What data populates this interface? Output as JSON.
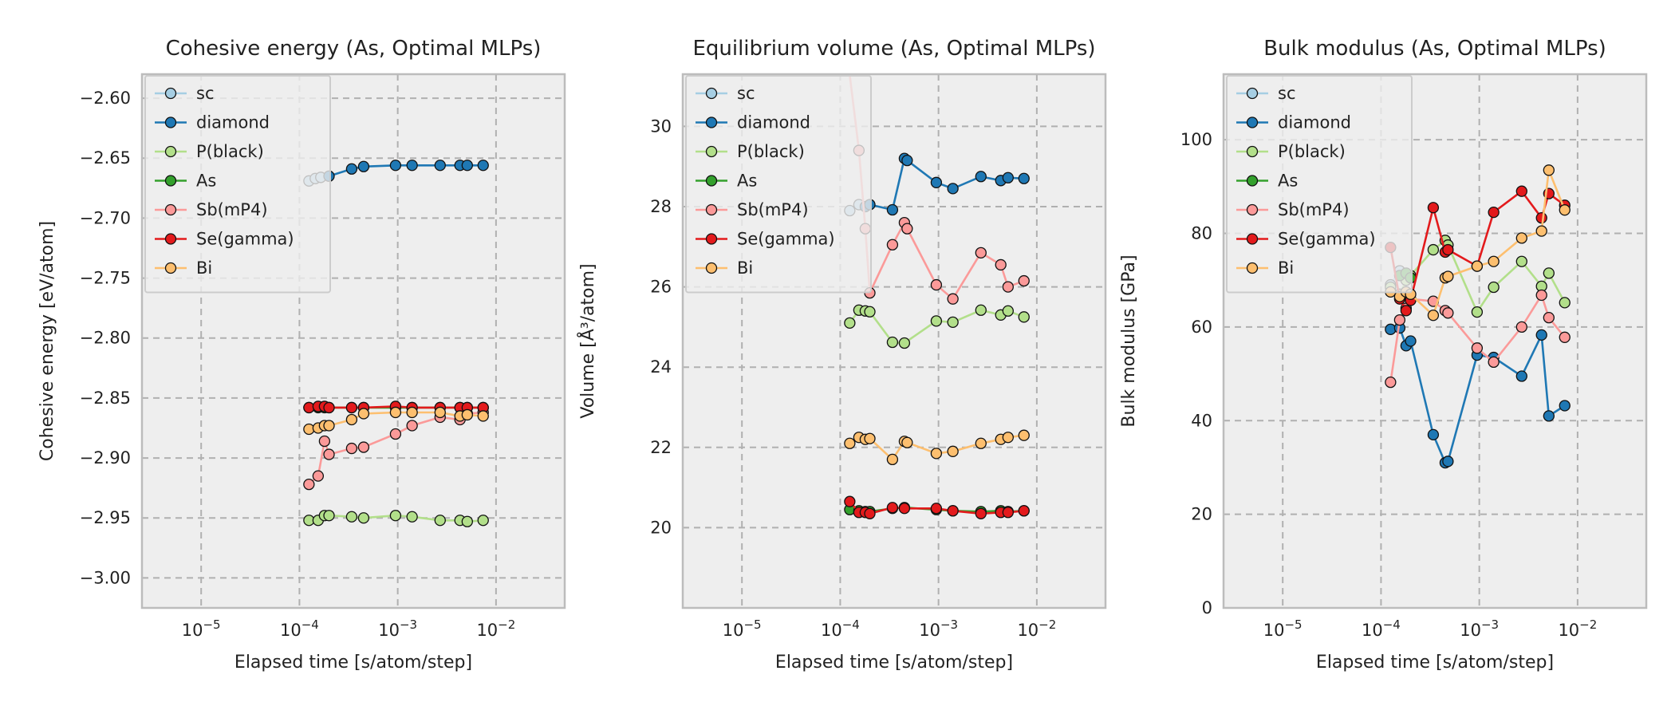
{
  "colors": {
    "sc": "#a6cee3",
    "diamond": "#1f78b4",
    "P(black)": "#b2df8a",
    "As": "#33a02c",
    "Sb(mP4)": "#fb9a99",
    "Se(gamma)": "#e31a1c",
    "Bi": "#fdbf6f",
    "panel_bg": "#eeeeee",
    "grid": "#b0b0b0",
    "frame": "#bcbcbc"
  },
  "legend_labels": [
    "sc",
    "diamond",
    "P(black)",
    "As",
    "Sb(mP4)",
    "Se(gamma)",
    "Bi"
  ],
  "chart_data": [
    {
      "type": "line",
      "title": "Cohesive energy (As, Optimal MLPs)",
      "xlabel": "Elapsed time [s/atom/step]",
      "ylabel": "Cohesive energy [eV/atom]",
      "xscale": "log",
      "xlim": [
        2.5e-06,
        0.05
      ],
      "ylim": [
        -3.025,
        -2.58
      ],
      "x_ticks": [
        1e-05,
        0.0001,
        0.001,
        0.01
      ],
      "x_tick_labels": [
        "10^-5",
        "10^-4",
        "10^-3",
        "10^-2"
      ],
      "y_ticks": [
        -3.0,
        -2.95,
        -2.9,
        -2.85,
        -2.8,
        -2.75,
        -2.7,
        -2.65,
        -2.6
      ],
      "y_tick_labels": [
        "−3.00",
        "−2.95",
        "−2.90",
        "−2.85",
        "−2.80",
        "−2.75",
        "−2.70",
        "−2.65",
        "−2.60"
      ],
      "grid": true,
      "legend_position": "upper-left",
      "series": [
        {
          "name": "sc",
          "x": [
            0.000125,
            0.000145,
            0.000165
          ],
          "y": [
            -2.669,
            -2.667,
            -2.666
          ]
        },
        {
          "name": "diamond",
          "x": [
            0.0002,
            0.00034,
            0.00045,
            0.00095,
            0.0014,
            0.0027,
            0.0043,
            0.0051,
            0.0074
          ],
          "y": [
            -2.665,
            -2.659,
            -2.657,
            -2.656,
            -2.656,
            -2.656,
            -2.656,
            -2.656,
            -2.656
          ]
        },
        {
          "name": "P(black)",
          "x": [
            0.000125,
            0.000155,
            0.00018,
            0.0002,
            0.00034,
            0.00045,
            0.00095,
            0.0014,
            0.0027,
            0.0043,
            0.0051,
            0.0074
          ],
          "y": [
            -2.952,
            -2.952,
            -2.948,
            -2.948,
            -2.949,
            -2.95,
            -2.948,
            -2.949,
            -2.952,
            -2.952,
            -2.953,
            -2.952
          ]
        },
        {
          "name": "As",
          "x": [
            0.000125,
            0.000155,
            0.00018,
            0.0002,
            0.00034,
            0.00045,
            0.00095,
            0.0014,
            0.0027,
            0.0043,
            0.0051,
            0.0074
          ],
          "y": [
            -2.858,
            -2.858,
            -2.858,
            -2.858,
            -2.858,
            -2.858,
            -2.858,
            -2.858,
            -2.858,
            -2.858,
            -2.858,
            -2.858
          ]
        },
        {
          "name": "Sb(mP4)",
          "x": [
            0.000125,
            0.000155,
            0.00018,
            0.0002,
            0.00034,
            0.00045,
            0.00095,
            0.0014,
            0.0027,
            0.0043,
            0.0051,
            0.0074
          ],
          "y": [
            -2.922,
            -2.915,
            -2.886,
            -2.897,
            -2.892,
            -2.891,
            -2.88,
            -2.873,
            -2.866,
            -2.868,
            -2.863,
            -2.862
          ]
        },
        {
          "name": "Se(gamma)",
          "x": [
            0.000125,
            0.000155,
            0.00018,
            0.0002,
            0.00034,
            0.00045,
            0.00095,
            0.0014,
            0.0027,
            0.0043,
            0.0051,
            0.0074
          ],
          "y": [
            -2.858,
            -2.857,
            -2.857,
            -2.858,
            -2.858,
            -2.858,
            -2.857,
            -2.858,
            -2.858,
            -2.858,
            -2.858,
            -2.858
          ]
        },
        {
          "name": "Bi",
          "x": [
            0.000125,
            0.000155,
            0.00018,
            0.0002,
            0.00034,
            0.00045,
            0.00095,
            0.0014,
            0.0027,
            0.0043,
            0.0051,
            0.0074
          ],
          "y": [
            -2.876,
            -2.875,
            -2.873,
            -2.873,
            -2.868,
            -2.863,
            -2.862,
            -2.862,
            -2.862,
            -2.865,
            -2.864,
            -2.865
          ]
        }
      ]
    },
    {
      "type": "line",
      "title": "Equilibrium volume (As, Optimal MLPs)",
      "xlabel": "Elapsed time [s/atom/step]",
      "ylabel": "Volume [Å³/atom]",
      "xscale": "log",
      "xlim": [
        2.5e-06,
        0.05
      ],
      "ylim": [
        18.0,
        31.3
      ],
      "x_ticks": [
        1e-05,
        0.0001,
        0.001,
        0.01
      ],
      "x_tick_labels": [
        "10^-5",
        "10^-4",
        "10^-3",
        "10^-2"
      ],
      "y_ticks": [
        20,
        22,
        24,
        26,
        28,
        30
      ],
      "y_tick_labels": [
        "20",
        "22",
        "24",
        "26",
        "28",
        "30"
      ],
      "grid": true,
      "legend_position": "upper-left",
      "series": [
        {
          "name": "sc",
          "x": [
            0.000125,
            0.000155
          ],
          "y": [
            27.9,
            28.05
          ]
        },
        {
          "name": "diamond",
          "x": [
            0.00018,
            0.0002,
            0.00034,
            0.00045,
            0.00048,
            0.00095,
            0.0014,
            0.0027,
            0.0043,
            0.0051,
            0.0074
          ],
          "y": [
            28.0,
            28.05,
            27.92,
            29.2,
            29.15,
            28.6,
            28.45,
            28.75,
            28.65,
            28.72,
            28.7
          ]
        },
        {
          "name": "P(black)",
          "x": [
            0.000125,
            0.000155,
            0.00018,
            0.0002,
            0.00034,
            0.00045,
            0.00095,
            0.0014,
            0.0027,
            0.0043,
            0.0051,
            0.0074
          ],
          "y": [
            25.1,
            25.42,
            25.4,
            25.38,
            24.62,
            24.6,
            25.15,
            25.12,
            25.42,
            25.3,
            25.4,
            25.25
          ]
        },
        {
          "name": "As",
          "x": [
            0.000125,
            0.000155,
            0.00018,
            0.0002,
            0.00034,
            0.00045,
            0.00095,
            0.0014,
            0.0027,
            0.0043,
            0.0051,
            0.0074
          ],
          "y": [
            20.45,
            20.42,
            20.4,
            20.4,
            20.48,
            20.5,
            20.45,
            20.42,
            20.4,
            20.42,
            20.4,
            20.42
          ]
        },
        {
          "name": "Sb(mP4)",
          "x": [
            0.000115,
            0.000155,
            0.00018,
            0.0002,
            0.00034,
            0.00045,
            0.00048,
            0.00095,
            0.0014,
            0.0027,
            0.0043,
            0.0051,
            0.0074
          ],
          "y": [
            32.0,
            29.4,
            27.45,
            25.85,
            27.05,
            27.6,
            27.45,
            26.05,
            25.7,
            26.85,
            26.55,
            26.0,
            26.15
          ]
        },
        {
          "name": "Se(gamma)",
          "x": [
            0.000125,
            0.000155,
            0.00018,
            0.0002,
            0.00034,
            0.00045,
            0.00095,
            0.0014,
            0.0027,
            0.0043,
            0.0051,
            0.0074
          ],
          "y": [
            20.65,
            20.38,
            20.38,
            20.35,
            20.5,
            20.48,
            20.48,
            20.42,
            20.35,
            20.38,
            20.38,
            20.42
          ]
        },
        {
          "name": "Bi",
          "x": [
            0.000125,
            0.000155,
            0.00018,
            0.0002,
            0.00034,
            0.00045,
            0.00048,
            0.00095,
            0.0014,
            0.0027,
            0.0043,
            0.0051,
            0.0074
          ],
          "y": [
            22.1,
            22.25,
            22.2,
            22.22,
            21.7,
            22.15,
            22.12,
            21.85,
            21.9,
            22.1,
            22.2,
            22.25,
            22.3
          ]
        }
      ]
    },
    {
      "type": "line",
      "title": "Bulk modulus (As, Optimal MLPs)",
      "xlabel": "Elapsed time [s/atom/step]",
      "ylabel": "Bulk modulus [GPa]",
      "xscale": "log",
      "xlim": [
        2.5e-06,
        0.05
      ],
      "ylim": [
        0,
        114
      ],
      "x_ticks": [
        1e-05,
        0.0001,
        0.001,
        0.01
      ],
      "x_tick_labels": [
        "10^-5",
        "10^-4",
        "10^-3",
        "10^-2"
      ],
      "y_ticks": [
        0,
        20,
        40,
        60,
        80,
        100
      ],
      "y_tick_labels": [
        "0",
        "20",
        "40",
        "60",
        "80",
        "100"
      ],
      "grid": true,
      "legend_position": "upper-left",
      "series": [
        {
          "name": "sc",
          "x": [
            0.000125,
            0.000155
          ],
          "y": [
            69,
            72
          ]
        },
        {
          "name": "diamond",
          "x": [
            0.000125,
            0.000155,
            0.00018,
            0.0002,
            0.00034,
            0.00045,
            0.00048,
            0.00095,
            0.0014,
            0.0027,
            0.0043,
            0.0051,
            0.0074
          ],
          "y": [
            59.5,
            59.8,
            56,
            57,
            37,
            31,
            31.3,
            54,
            53.5,
            49.5,
            58.3,
            41,
            43.2
          ]
        },
        {
          "name": "P(black)",
          "x": [
            0.000125,
            0.000155,
            0.00018,
            0.0002,
            0.00034,
            0.00045,
            0.00048,
            0.00095,
            0.0014,
            0.0027,
            0.0043,
            0.0051,
            0.0074
          ],
          "y": [
            68.5,
            67,
            70,
            71,
            76.5,
            78.5,
            77.5,
            63.2,
            68.5,
            74,
            68.7,
            71.5,
            65.2
          ]
        },
        {
          "name": "As",
          "x": [
            0.000155,
            0.00018,
            0.0002
          ],
          "y": [
            71,
            71.5,
            70.5
          ]
        },
        {
          "name": "Sb(mP4)",
          "x": [
            0.000125,
            0.000155,
            0.00018,
            0.0002,
            0.00034,
            0.00045,
            0.00048,
            0.00095,
            0.0014,
            0.0027,
            0.0043,
            0.0051,
            0.0074
          ],
          "y": [
            48.2,
            61.5,
            64,
            66,
            65.5,
            63.5,
            63,
            55.5,
            52.5,
            60,
            66.8,
            62,
            57.8
          ]
        },
        {
          "name": "Se(gamma)",
          "x": [
            0.000125,
            0.000155,
            0.00018,
            0.0002,
            0.00034,
            0.00045,
            0.00048,
            0.00095,
            0.0014,
            0.0027,
            0.0043,
            0.0051,
            0.0074
          ],
          "y": [
            77,
            66,
            63.5,
            65.7,
            85.5,
            76,
            76.5,
            73,
            84.5,
            89,
            83.3,
            88.5,
            86
          ]
        },
        {
          "name": "Bi",
          "x": [
            0.000125,
            0.000155,
            0.00018,
            0.0002,
            0.00034,
            0.00045,
            0.00048,
            0.00095,
            0.0014,
            0.0027,
            0.0043,
            0.0051,
            0.0074
          ],
          "y": [
            67.5,
            66.5,
            67.5,
            67,
            62.5,
            70.5,
            70.8,
            73,
            74,
            79,
            80.5,
            93.5,
            85
          ]
        }
      ]
    }
  ]
}
